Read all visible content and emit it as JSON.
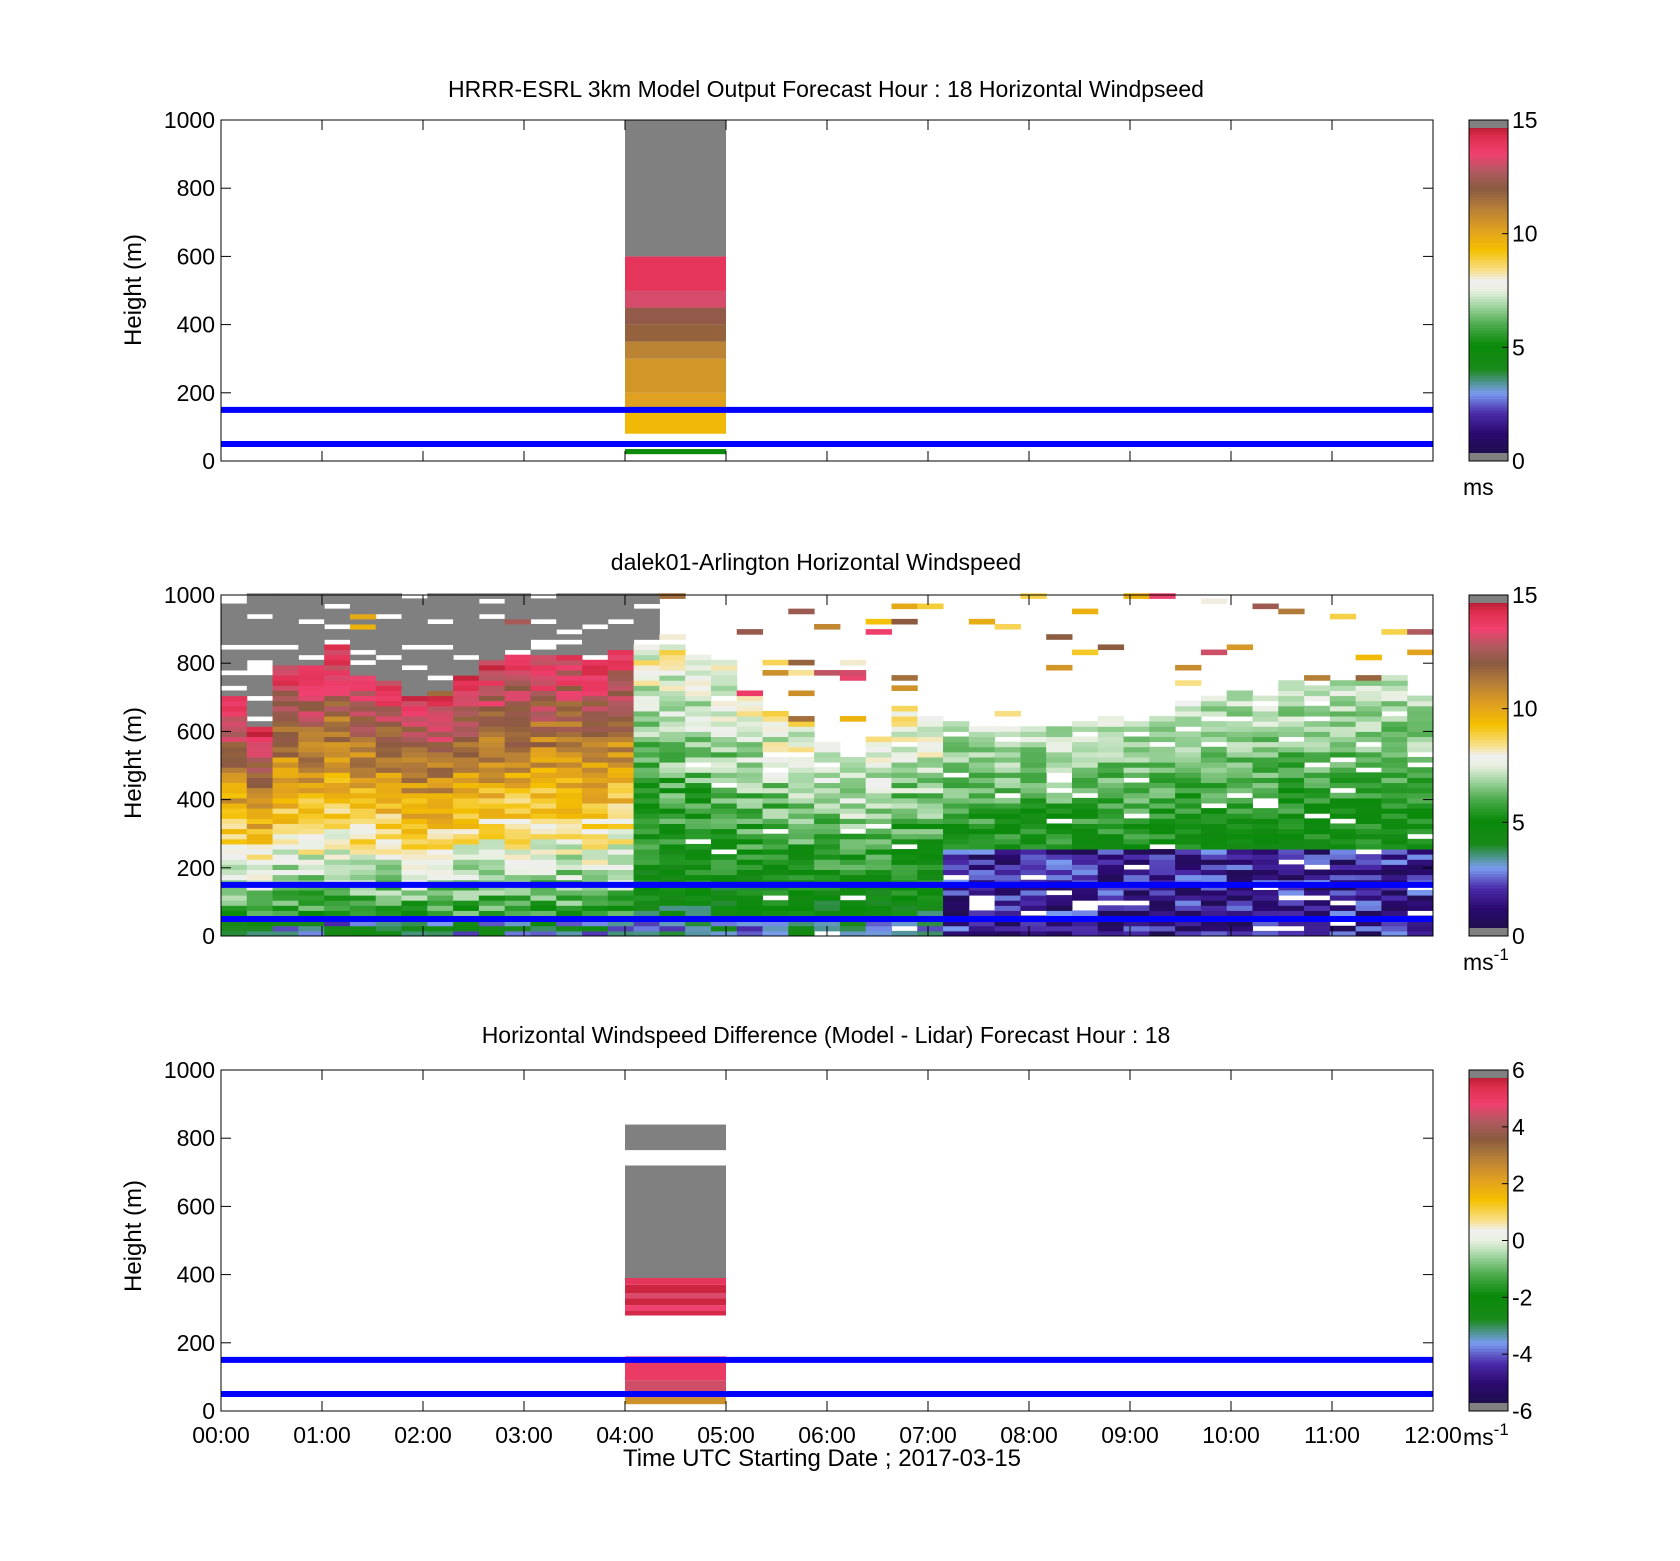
{
  "figure": {
    "xlabel": "Time UTC  Starting Date ; 2017-03-15",
    "x_ticks": [
      "00:00",
      "01:00",
      "02:00",
      "03:00",
      "04:00",
      "05:00",
      "06:00",
      "07:00",
      "08:00",
      "09:00",
      "10:00",
      "11:00",
      "12:00"
    ]
  },
  "chart_data": [
    {
      "type": "heatmap",
      "title": "HRRR-ESRL 3km Model Output   Forecast Hour : 18 Horizontal Windpseed",
      "ylabel": "Height (m)",
      "xlim_hours": [
        0,
        12
      ],
      "ylim": [
        0,
        1000
      ],
      "y_ticks": [
        "0",
        "200",
        "400",
        "600",
        "800",
        "1000"
      ],
      "colorbar": {
        "range": [
          0,
          15
        ],
        "ticks": [
          "0",
          "5",
          "10",
          "15"
        ],
        "unit": "ms",
        "unit_sup": ""
      },
      "reference_lines_m": [
        50,
        150
      ],
      "colormap": "windspeed",
      "columns": [
        {
          "t0": 4.0,
          "t1": 5.0,
          "cells": [
            {
              "z0": 20,
              "z1": 35,
              "v": 5.0
            },
            {
              "z0": 35,
              "z1": 50,
              "v": null
            },
            {
              "z0": 80,
              "z1": 150,
              "v": 9.5
            },
            {
              "z0": 150,
              "z1": 200,
              "v": 10.2
            },
            {
              "z0": 200,
              "z1": 300,
              "v": 10.5
            },
            {
              "z0": 300,
              "z1": 350,
              "v": 11.0
            },
            {
              "z0": 350,
              "z1": 400,
              "v": 11.8
            },
            {
              "z0": 400,
              "z1": 450,
              "v": 12.2
            },
            {
              "z0": 450,
              "z1": 500,
              "v": 13.2
            },
            {
              "z0": 500,
              "z1": 600,
              "v": 14.0
            },
            {
              "z0": 600,
              "z1": 1000,
              "v": 16.0
            }
          ]
        }
      ]
    },
    {
      "type": "heatmap",
      "title": "dalek01-Arlington  Horizontal Windspeed",
      "ylabel": "Height (m)",
      "xlim_hours": [
        0,
        12
      ],
      "ylim": [
        0,
        1000
      ],
      "y_ticks": [
        "0",
        "200",
        "400",
        "600",
        "800",
        "1000"
      ],
      "colorbar": {
        "range": [
          0,
          15
        ],
        "ticks": [
          "0",
          "5",
          "10",
          "15"
        ],
        "unit": "ms",
        "unit_sup": "-1"
      },
      "reference_lines_m": [
        50,
        150
      ],
      "colormap": "windspeed",
      "lidar_profile": {
        "note_coverage_top_m": [
          700,
          600,
          790,
          790,
          850,
          760,
          740,
          700,
          690,
          760,
          800,
          810,
          820,
          820,
          800,
          830,
          850,
          850,
          820,
          800,
          700,
          650,
          620,
          560,
          520,
          580,
          660,
          640,
          620,
          600,
          610,
          610,
          600,
          640,
          640,
          620,
          640,
          680,
          700,
          710,
          700,
          740,
          720,
          740,
          740,
          750,
          690
        ],
        "lower_band": "ranges from 8-12 m/s in early hours above 200 m to 3-6 m/s later, with 0-2 m/s near surface after 07:00"
      }
    },
    {
      "type": "heatmap",
      "title": "Horizontal Windspeed Difference (Model - Lidar) Forecast Hour : 18",
      "ylabel": "Height (m)",
      "xlim_hours": [
        0,
        12
      ],
      "ylim": [
        0,
        1000
      ],
      "y_ticks": [
        "0",
        "200",
        "400",
        "600",
        "800",
        "1000"
      ],
      "colorbar": {
        "range": [
          -6,
          6
        ],
        "ticks": [
          "-6",
          "-4",
          "-2",
          "0",
          "2",
          "4",
          "6"
        ],
        "unit": "ms",
        "unit_sup": "-1"
      },
      "reference_lines_m": [
        50,
        150
      ],
      "colormap": "difference",
      "columns": [
        {
          "t0": 4.0,
          "t1": 5.0,
          "cells": [
            {
              "z0": 20,
              "z1": 40,
              "v": 2.5
            },
            {
              "z0": 40,
              "z1": 90,
              "v": 4.5
            },
            {
              "z0": 90,
              "z1": 160,
              "v": 5.0
            },
            {
              "z0": 280,
              "z1": 295,
              "v": 5.5
            },
            {
              "z0": 295,
              "z1": 310,
              "v": 4.8
            },
            {
              "z0": 310,
              "z1": 330,
              "v": 5.6
            },
            {
              "z0": 330,
              "z1": 345,
              "v": 4.6
            },
            {
              "z0": 345,
              "z1": 370,
              "v": 5.6
            },
            {
              "z0": 370,
              "z1": 390,
              "v": 5.2
            },
            {
              "z0": 390,
              "z1": 720,
              "v": 7.0
            },
            {
              "z0": 765,
              "z1": 840,
              "v": 7.0
            }
          ]
        }
      ]
    }
  ],
  "colors": {
    "reference_line": "#0000ff",
    "out_of_range": "#808080",
    "axis": "#000000"
  }
}
